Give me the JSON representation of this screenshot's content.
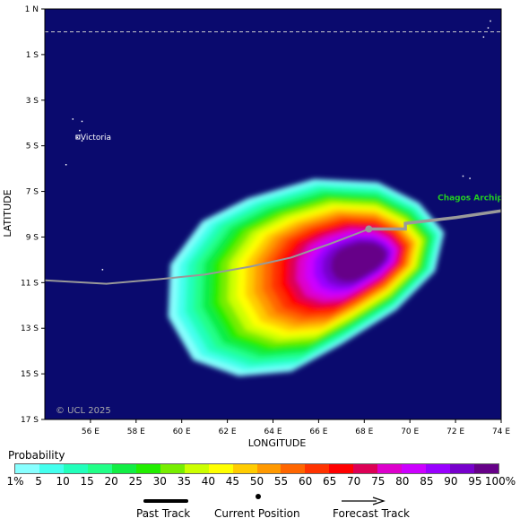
{
  "map": {
    "copyright": "© UCL 2025",
    "x_axis_title": "LONGITUDE",
    "y_axis_title": "LATITUDE",
    "lat_labels": [
      "1 N",
      "1 S",
      "3 S",
      "5 S",
      "7 S",
      "9 S",
      "11 S",
      "13 S",
      "15 S",
      "17 S"
    ],
    "lon_labels": [
      "56 E",
      "58 E",
      "60 E",
      "62 E",
      "64 E",
      "66 E",
      "68 E",
      "70 E",
      "72 E",
      "74 E"
    ],
    "places": [
      {
        "name": "Victoria",
        "lon": 55.45,
        "lat": -4.62,
        "color": "#ffffff"
      },
      {
        "name": "Chagos Archip",
        "lon": 72.0,
        "lat": -7.4,
        "color": "#22cc22"
      }
    ],
    "equator_lat": 0,
    "extent": {
      "lon_min": 54,
      "lon_max": 74,
      "lat_min": -17,
      "lat_max": 1
    },
    "ocean_color": "#0a0a6e"
  },
  "storm": {
    "past_track": [
      [
        54,
        -10.9
      ],
      [
        56.7,
        -11.05
      ],
      [
        59,
        -10.85
      ],
      [
        61,
        -10.65
      ],
      [
        63,
        -10.3
      ],
      [
        64.8,
        -9.9
      ],
      [
        66.5,
        -9.3
      ],
      [
        68.2,
        -8.65
      ]
    ],
    "current_position": {
      "lon": 68.2,
      "lat": -8.65
    },
    "forecast_track": [
      [
        68.2,
        -8.65
      ],
      [
        69.8,
        -8.65
      ],
      [
        69.8,
        -8.4
      ],
      [
        72,
        -8.15
      ],
      [
        74,
        -7.85
      ]
    ]
  },
  "probability": {
    "title": "Probability",
    "labels": [
      "1%",
      "5",
      "10",
      "15",
      "20",
      "25",
      "30",
      "35",
      "40",
      "45",
      "50",
      "55",
      "60",
      "65",
      "70",
      "75",
      "80",
      "85",
      "90",
      "95",
      "100%"
    ],
    "colors": [
      "#88ffff",
      "#44ffee",
      "#22ffbb",
      "#22ff88",
      "#11ee44",
      "#22ee00",
      "#77ee00",
      "#ccff00",
      "#ffff00",
      "#ffcc00",
      "#ff9900",
      "#ff6600",
      "#ff3300",
      "#ff0000",
      "#dd0055",
      "#dd00cc",
      "#cc00ff",
      "#9900ff",
      "#7700cc",
      "#660088"
    ]
  },
  "legend": {
    "past_track": "Past Track",
    "current_position": "Current Position",
    "forecast_track": "Forecast Track"
  }
}
